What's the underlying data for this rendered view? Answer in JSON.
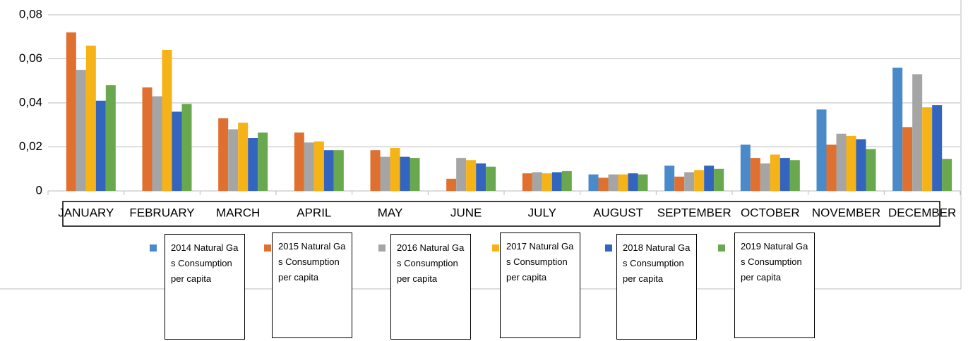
{
  "chart_data": {
    "type": "bar",
    "categories": [
      "JANUARY",
      "FEBRUARY",
      "MARCH",
      "APRIL",
      "MAY",
      "JUNE",
      "JULY",
      "AUGUST",
      "SEPTEMBER",
      "OCTOBER",
      "NOVEMBER",
      "DECEMBER"
    ],
    "series": [
      {
        "name": "2014 Natural Gas Consumption per capita",
        "color": "#4a8ac9",
        "values": [
          null,
          null,
          null,
          null,
          null,
          null,
          null,
          0.0075,
          0.0115,
          0.021,
          0.037,
          0.056
        ]
      },
      {
        "name": "2015 Natural Gas Consumption per capita",
        "color": "#e0702f",
        "values": [
          0.072,
          0.047,
          0.033,
          0.0265,
          0.0185,
          0.0055,
          0.008,
          0.006,
          0.0065,
          0.015,
          0.021,
          0.029
        ]
      },
      {
        "name": "2016 Natural Gas Consumption per capita",
        "color": "#a5a5a5",
        "values": [
          0.055,
          0.043,
          0.028,
          0.022,
          0.0155,
          0.015,
          0.0085,
          0.0075,
          0.0085,
          0.0125,
          0.026,
          0.053
        ]
      },
      {
        "name": "2017 Natural Gas Consumption per capita",
        "color": "#f5b317",
        "values": [
          0.066,
          0.064,
          0.031,
          0.0225,
          0.0195,
          0.014,
          0.008,
          0.0075,
          0.0095,
          0.0165,
          0.025,
          0.038
        ]
      },
      {
        "name": "2018 Natural Gas Consumption per capita",
        "color": "#3465be",
        "values": [
          0.041,
          0.036,
          0.024,
          0.0185,
          0.0155,
          0.0125,
          0.0085,
          0.008,
          0.0115,
          0.015,
          0.0235,
          0.039
        ]
      },
      {
        "name": "2019 Natural Gas Consumption per capita",
        "color": "#6aa84f",
        "values": [
          0.048,
          0.0395,
          0.0265,
          0.0185,
          0.015,
          0.011,
          0.009,
          0.0075,
          0.01,
          0.014,
          0.019,
          0.0145
        ]
      }
    ],
    "ylim": [
      0,
      0.08
    ],
    "yticks": [
      0,
      {
        "value": 0.02,
        "label": "0,02"
      },
      {
        "value": 0.04,
        "label": "0,04"
      },
      {
        "value": 0.06,
        "label": "0,06"
      },
      {
        "value": 0.08,
        "label": "0,08"
      }
    ],
    "grid": true
  }
}
